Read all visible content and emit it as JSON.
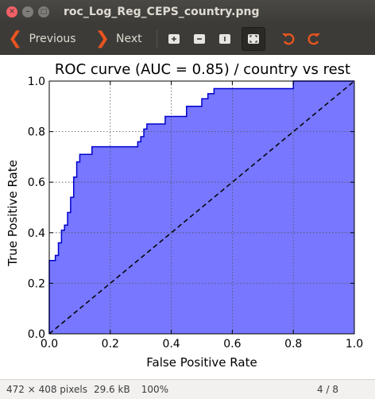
{
  "window": {
    "title": "roc_Log_Reg_CEPS_country.png"
  },
  "toolbar": {
    "previous_label": "Previous",
    "next_label": "Next",
    "icons": [
      "zoom-in-icon",
      "zoom-out-icon",
      "normal-size-icon",
      "best-fit-icon",
      "rotate-left-icon",
      "rotate-right-icon"
    ],
    "accent": "#e95420"
  },
  "status": {
    "dimensions": "472 × 408 pixels",
    "filesize": "29.6 kB",
    "zoom": "100%",
    "page": "4 / 8"
  },
  "chart_data": {
    "type": "area",
    "title": "ROC curve (AUC = 0.85) / country vs rest",
    "xlabel": "False Positive Rate",
    "ylabel": "True Positive Rate",
    "xlim": [
      0.0,
      1.0
    ],
    "ylim": [
      0.0,
      1.0
    ],
    "xticks": [
      "0.0",
      "0.2",
      "0.4",
      "0.6",
      "0.8",
      "1.0"
    ],
    "yticks": [
      "0.0",
      "0.2",
      "0.4",
      "0.6",
      "0.8",
      "1.0"
    ],
    "grid": true,
    "fill_color": "#7777ff",
    "line_color": "#0000cc",
    "roc_points": [
      [
        0.0,
        0.0
      ],
      [
        0.0,
        0.29
      ],
      [
        0.02,
        0.29
      ],
      [
        0.02,
        0.31
      ],
      [
        0.03,
        0.31
      ],
      [
        0.03,
        0.36
      ],
      [
        0.04,
        0.36
      ],
      [
        0.04,
        0.41
      ],
      [
        0.05,
        0.41
      ],
      [
        0.05,
        0.43
      ],
      [
        0.06,
        0.43
      ],
      [
        0.06,
        0.48
      ],
      [
        0.07,
        0.48
      ],
      [
        0.07,
        0.54
      ],
      [
        0.08,
        0.54
      ],
      [
        0.08,
        0.62
      ],
      [
        0.09,
        0.62
      ],
      [
        0.09,
        0.68
      ],
      [
        0.1,
        0.68
      ],
      [
        0.1,
        0.71
      ],
      [
        0.14,
        0.71
      ],
      [
        0.14,
        0.74
      ],
      [
        0.29,
        0.74
      ],
      [
        0.29,
        0.76
      ],
      [
        0.3,
        0.76
      ],
      [
        0.3,
        0.78
      ],
      [
        0.31,
        0.78
      ],
      [
        0.31,
        0.81
      ],
      [
        0.32,
        0.81
      ],
      [
        0.32,
        0.83
      ],
      [
        0.38,
        0.83
      ],
      [
        0.38,
        0.86
      ],
      [
        0.45,
        0.86
      ],
      [
        0.45,
        0.9
      ],
      [
        0.5,
        0.9
      ],
      [
        0.5,
        0.93
      ],
      [
        0.52,
        0.93
      ],
      [
        0.52,
        0.95
      ],
      [
        0.54,
        0.95
      ],
      [
        0.54,
        0.97
      ],
      [
        0.8,
        0.97
      ],
      [
        0.8,
        1.0
      ],
      [
        1.0,
        1.0
      ]
    ],
    "diagonal": [
      [
        0.0,
        0.0
      ],
      [
        1.0,
        1.0
      ]
    ]
  }
}
